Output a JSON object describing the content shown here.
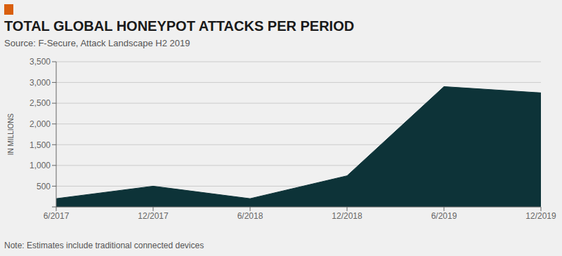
{
  "chart_data": {
    "type": "area",
    "title": "TOTAL GLOBAL HONEYPOT ATTACKS PER PERIOD",
    "subtitle": "Source: F-Secure, Attack Landscape H2 2019",
    "note": "Note: Estimates include traditional connected devices",
    "ylabel": "IN MILLIONS",
    "categories": [
      "6/2017",
      "12/2017",
      "6/2018",
      "12/2018",
      "6/2019",
      "12/2019"
    ],
    "values": [
      200,
      500,
      200,
      750,
      2900,
      2750
    ],
    "color": "#0d3338",
    "ylim": [
      0,
      3500
    ],
    "yticks": [
      {
        "value": 0,
        "label": ""
      },
      500,
      {
        "value": 1000,
        "label": "1,000"
      },
      {
        "value": 1500,
        "label": "1,500"
      },
      {
        "value": 2000,
        "label": "2,000"
      },
      {
        "value": 2500,
        "label": "2,500"
      },
      {
        "value": 3000,
        "label": "3,000"
      },
      {
        "value": 3500,
        "label": "3,500"
      }
    ],
    "grid": true
  }
}
